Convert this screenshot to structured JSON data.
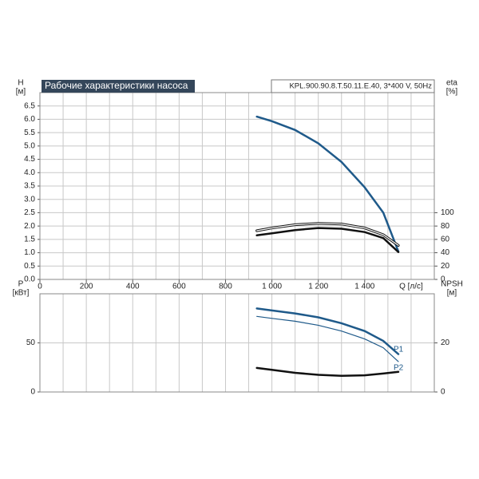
{
  "chart_data": [
    {
      "type": "line",
      "title": "Рабочие характеристики насоса",
      "subtitle": "KPL.900.90.8.T.50.11.E.40, 3*400 V, 50Hz",
      "y_label": "H",
      "y_unit": "[м]",
      "y2_label": "eta",
      "y2_unit": "[%]",
      "x_label": "Q [л/с]",
      "xlim": [
        0,
        1700
      ],
      "xticks": [
        0,
        200,
        400,
        600,
        800,
        {
          "value": 1000,
          "label": "1 000"
        },
        {
          "value": 1200,
          "label": "1 200"
        },
        {
          "value": 1400,
          "label": "1 400"
        }
      ],
      "xgrid": [
        100,
        200,
        300,
        400,
        500,
        600,
        700,
        800,
        900,
        1000,
        1100,
        1200,
        1300,
        1400,
        1500,
        1600
      ],
      "ylim": [
        0,
        7
      ],
      "yticks": [
        {
          "value": 0,
          "label": "0.0"
        },
        0.5,
        {
          "value": 1,
          "label": "1.0"
        },
        1.5,
        {
          "value": 2,
          "label": "2.0"
        },
        2.5,
        {
          "value": 3,
          "label": "3.0"
        },
        3.5,
        {
          "value": 4,
          "label": "4.0"
        },
        4.5,
        {
          "value": 5,
          "label": "5.0"
        },
        5.5,
        {
          "value": 6,
          "label": "6.0"
        },
        6.5
      ],
      "y2lim": [
        0,
        280
      ],
      "y2ticks": [
        0,
        20,
        40,
        60,
        80,
        100
      ],
      "grid": true,
      "x": [
        935,
        1000,
        1100,
        1200,
        1300,
        1400,
        1480,
        1545
      ],
      "series": [
        {
          "color": "#1f5a8a",
          "values": [
            6.1,
            5.93,
            5.6,
            5.1,
            4.4,
            3.45,
            2.5,
            1.05
          ]
        },
        {
          "color": "#111111",
          "axis": "y2",
          "values": [
            73,
            77,
            82,
            84,
            83,
            77,
            67,
            51
          ]
        },
        {
          "color": "#111111",
          "axis": "y2",
          "values": [
            66,
            69,
            74,
            77,
            76,
            71,
            62,
            41
          ]
        }
      ]
    },
    {
      "type": "line",
      "y_label": "P",
      "y_unit": "[кВт]",
      "y2_label": "NPSH",
      "y2_unit": "[м]",
      "xlim": [
        0,
        1700
      ],
      "xgrid": [
        100,
        200,
        300,
        400,
        500,
        600,
        700,
        800,
        900,
        1000,
        1100,
        1200,
        1300,
        1400,
        1500,
        1600
      ],
      "ylim": [
        0,
        100
      ],
      "yticks": [
        0,
        50
      ],
      "y2lim": [
        0,
        40
      ],
      "y2ticks": [
        0,
        20
      ],
      "grid": true,
      "x": [
        935,
        1000,
        1100,
        1200,
        1300,
        1400,
        1480,
        1545
      ],
      "series": [
        {
          "name": "P1",
          "color": "#1f5a8a",
          "values": [
            85,
            83,
            80,
            76,
            70,
            62,
            52,
            38.5
          ]
        },
        {
          "name": "P2",
          "color": "#1f5a8a",
          "values": [
            77,
            75,
            72,
            68,
            62,
            54,
            45,
            31
          ]
        },
        {
          "color": "#111111",
          "axis": "y2",
          "values": [
            9.8,
            9,
            7.8,
            7,
            6.6,
            6.8,
            7.5,
            8.2
          ]
        }
      ]
    }
  ]
}
